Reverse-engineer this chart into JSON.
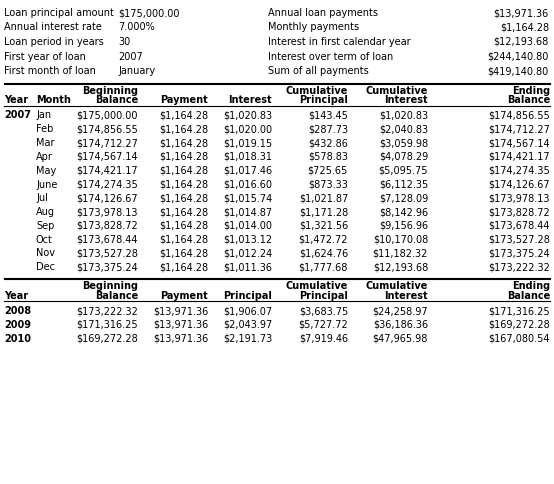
{
  "summary": [
    [
      "Loan principal amount",
      "$175,000.00",
      "Annual loan payments",
      "$13,971.36"
    ],
    [
      "Annual interest rate",
      "7.000%",
      "Monthly payments",
      "$1,164.28"
    ],
    [
      "Loan period in years",
      "30",
      "Interest in first calendar year",
      "$12,193.68"
    ],
    [
      "First year of loan",
      "2007",
      "Interest over term of loan",
      "$244,140.80"
    ],
    [
      "First month of loan",
      "January",
      "Sum of all payments",
      "$419,140.80"
    ]
  ],
  "header1_line1": [
    "",
    "",
    "Beginning",
    "",
    "",
    "Cumulative",
    "Cumulative",
    "Ending"
  ],
  "header1_line2": [
    "Year",
    "Month",
    "Balance",
    "Payment",
    "Interest",
    "Principal",
    "Interest",
    "Balance"
  ],
  "monthly_data": [
    [
      "2007",
      "Jan",
      "$175,000.00",
      "$1,164.28",
      "$1,020.83",
      "$143.45",
      "$1,020.83",
      "$174,856.55"
    ],
    [
      "",
      "Feb",
      "$174,856.55",
      "$1,164.28",
      "$1,020.00",
      "$287.73",
      "$2,040.83",
      "$174,712.27"
    ],
    [
      "",
      "Mar",
      "$174,712.27",
      "$1,164.28",
      "$1,019.15",
      "$432.86",
      "$3,059.98",
      "$174,567.14"
    ],
    [
      "",
      "Apr",
      "$174,567.14",
      "$1,164.28",
      "$1,018.31",
      "$578.83",
      "$4,078.29",
      "$174,421.17"
    ],
    [
      "",
      "May",
      "$174,421.17",
      "$1,164.28",
      "$1,017.46",
      "$725.65",
      "$5,095.75",
      "$174,274.35"
    ],
    [
      "",
      "June",
      "$174,274.35",
      "$1,164.28",
      "$1,016.60",
      "$873.33",
      "$6,112.35",
      "$174,126.67"
    ],
    [
      "",
      "Jul",
      "$174,126.67",
      "$1,164.28",
      "$1,015.74",
      "$1,021.87",
      "$7,128.09",
      "$173,978.13"
    ],
    [
      "",
      "Aug",
      "$173,978.13",
      "$1,164.28",
      "$1,014.87",
      "$1,171.28",
      "$8,142.96",
      "$173,828.72"
    ],
    [
      "",
      "Sep",
      "$173,828.72",
      "$1,164.28",
      "$1,014.00",
      "$1,321.56",
      "$9,156.96",
      "$173,678.44"
    ],
    [
      "",
      "Oct",
      "$173,678.44",
      "$1,164.28",
      "$1,013.12",
      "$1,472.72",
      "$10,170.08",
      "$173,527.28"
    ],
    [
      "",
      "Nov",
      "$173,527.28",
      "$1,164.28",
      "$1,012.24",
      "$1,624.76",
      "$11,182.32",
      "$173,375.24"
    ],
    [
      "",
      "Dec",
      "$173,375.24",
      "$1,164.28",
      "$1,011.36",
      "$1,777.68",
      "$12,193.68",
      "$173,222.32"
    ]
  ],
  "header2_line1": [
    "",
    "",
    "Beginning",
    "",
    "",
    "Cumulative",
    "Cumulative",
    "Ending"
  ],
  "header2_line2": [
    "Year",
    "",
    "Balance",
    "Payment",
    "Principal",
    "Principal",
    "Interest",
    "Balance"
  ],
  "annual_data": [
    [
      "2008",
      "",
      "$173,222.32",
      "$13,971.36",
      "$1,906.07",
      "$3,683.75",
      "$24,258.97",
      "$171,316.25"
    ],
    [
      "2009",
      "",
      "$171,316.25",
      "$13,971.36",
      "$2,043.97",
      "$5,727.72",
      "$36,186.36",
      "$169,272.28"
    ],
    [
      "2010",
      "",
      "$169,272.28",
      "$13,971.36",
      "$2,191.73",
      "$7,919.46",
      "$47,965.98",
      "$167,080.54"
    ]
  ],
  "bg_color": "#ffffff",
  "font_size": 7.0
}
